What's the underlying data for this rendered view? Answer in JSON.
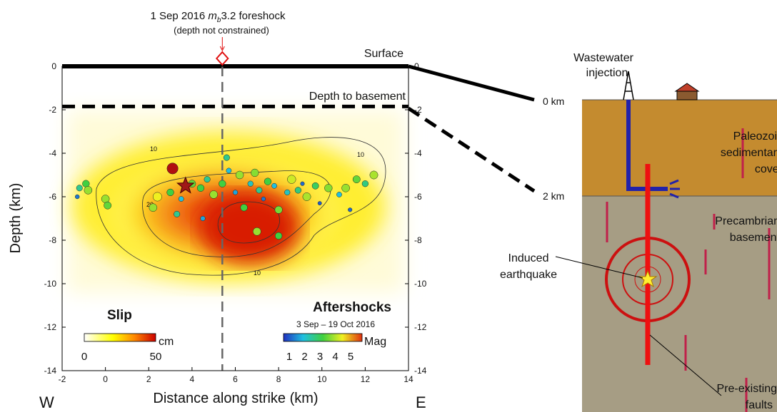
{
  "chart_data": {
    "type": "scatter",
    "title_parts": [
      "1 Sep 2016 ",
      "m",
      "b",
      "3.2 foreshock"
    ],
    "subtitle": "(depth not constrained)",
    "xlabel": "Distance along strike (km)",
    "ylabel": "Depth (km)",
    "west_label": "W",
    "east_label": "E",
    "surface_label": "Surface",
    "basement_label": "Depth to basement",
    "surface_depth": 0,
    "basement_depth": -1.85,
    "foreshock_x": 5.4,
    "hypocenter": {
      "x": 3.7,
      "y": -5.5
    },
    "xlim": [
      -2,
      14
    ],
    "ylim": [
      -14,
      0
    ],
    "xticks": [
      -2,
      0,
      2,
      4,
      6,
      8,
      10,
      12,
      14
    ],
    "yticks": [
      0,
      -2,
      -4,
      -6,
      -8,
      -10,
      -12,
      -14
    ],
    "contour_labels": [
      "10",
      "10",
      "20",
      "10"
    ],
    "slip_legend": {
      "title": "Slip",
      "unit": "cm",
      "ticks": [
        0,
        50
      ]
    },
    "aftershock_legend": {
      "title": "Aftershocks",
      "period": "3 Sep – 19 Oct 2016",
      "unit": "Mag",
      "ticks": [
        1,
        2,
        3,
        4,
        5
      ]
    },
    "series": [
      {
        "name": "Aftershocks",
        "x": [
          -1.2,
          -0.9,
          -0.8,
          -1.3,
          0.0,
          0.1,
          2.2,
          2.4,
          3.0,
          3.5,
          4.0,
          4.4,
          4.7,
          5.0,
          5.4,
          5.6,
          5.7,
          6.0,
          6.2,
          6.4,
          6.7,
          6.9,
          7.1,
          7.3,
          7.5,
          7.8,
          8.0,
          8.4,
          8.6,
          8.9,
          9.1,
          9.3,
          9.7,
          9.9,
          10.3,
          10.8,
          11.1,
          11.3,
          11.6,
          12.0,
          12.4,
          7.0,
          8.0,
          4.5,
          3.3,
          3.1
        ],
        "values": [
          -5.6,
          -5.4,
          -5.7,
          -6.0,
          -6.1,
          -6.4,
          -6.5,
          -6.0,
          -5.8,
          -6.1,
          -5.4,
          -5.6,
          -5.2,
          -5.9,
          -5.4,
          -4.2,
          -4.8,
          -5.8,
          -5.0,
          -6.5,
          -5.4,
          -4.9,
          -5.7,
          -6.1,
          -5.3,
          -5.5,
          -6.6,
          -5.8,
          -5.2,
          -5.7,
          -5.4,
          -6.0,
          -5.5,
          -6.3,
          -5.6,
          -5.9,
          -5.6,
          -6.6,
          -5.2,
          -5.4,
          -5.0,
          -7.6,
          -7.8,
          -7.0,
          -6.8,
          -4.7
        ],
        "mag": [
          2.5,
          3,
          3.5,
          1.5,
          3.5,
          3.2,
          3.5,
          4,
          3,
          2,
          3.2,
          3,
          2.5,
          3.5,
          3,
          2.5,
          2,
          1.8,
          3.5,
          3,
          2.2,
          3.4,
          2.5,
          1.5,
          3,
          2,
          3.3,
          2.2,
          3.8,
          2.6,
          1.4,
          3.6,
          2.8,
          1.3,
          3.4,
          2,
          3.5,
          1.4,
          3.2,
          2.6,
          3.6,
          3.5,
          3,
          1.8,
          2.5,
          5.2
        ]
      }
    ]
  },
  "schematic": {
    "injection": [
      "Wastewater",
      "injection"
    ],
    "top_depth": "0 km",
    "basement_depth": "2 km",
    "sediment": [
      "Paleozoic",
      "sedimentary",
      "cover"
    ],
    "basement": [
      "Precambrian",
      "basement"
    ],
    "quake": [
      "Induced",
      "earthquake"
    ],
    "faults": [
      "Pre-existing",
      "faults"
    ]
  }
}
